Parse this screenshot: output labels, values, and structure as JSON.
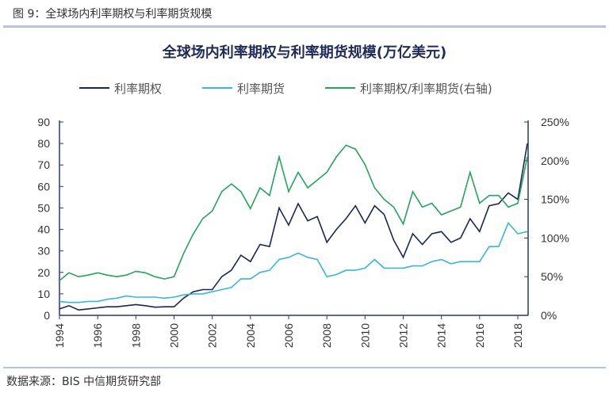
{
  "figure_caption": "图 9：全球场内利率期权与利率期货规模",
  "source": "数据来源：BIS 中信期货研究部",
  "chart_data": {
    "type": "line",
    "title": "全球场内利率期权与利率期货规模(万亿美元)",
    "legend_position": "top",
    "x": [
      1994,
      1994.5,
      1995,
      1995.5,
      1996,
      1996.5,
      1997,
      1997.5,
      1998,
      1998.5,
      1999,
      1999.5,
      2000,
      2000.5,
      2001,
      2001.5,
      2002,
      2002.5,
      2003,
      2003.5,
      2004,
      2004.5,
      2005,
      2005.5,
      2006,
      2006.5,
      2007,
      2007.5,
      2008,
      2008.5,
      2009,
      2009.5,
      2010,
      2010.5,
      2011,
      2011.5,
      2012,
      2012.5,
      2013,
      2013.5,
      2014,
      2014.5,
      2015,
      2015.5,
      2016,
      2016.5,
      2017,
      2017.5,
      2018,
      2018.5
    ],
    "x_ticks": [
      "1994",
      "1996",
      "1998",
      "2000",
      "2002",
      "2004",
      "2006",
      "2008",
      "2010",
      "2012",
      "2014",
      "2016",
      "2018"
    ],
    "y_left": {
      "range": [
        0,
        90
      ],
      "ticks": [
        "0",
        "10",
        "20",
        "30",
        "40",
        "50",
        "60",
        "70",
        "80",
        "90"
      ]
    },
    "y_right": {
      "range": [
        0,
        250
      ],
      "ticks": [
        "0%",
        "50%",
        "100%",
        "150%",
        "200%",
        "250%"
      ]
    },
    "grid": false,
    "series": [
      {
        "name": "利率期权",
        "axis": "left",
        "color": "#1b2654",
        "values": [
          3,
          4.5,
          2.5,
          3,
          3.5,
          4,
          4,
          4.5,
          5,
          4.5,
          3.8,
          4,
          4,
          8,
          11,
          12,
          12,
          18,
          21,
          28,
          25,
          33,
          32,
          50,
          42,
          52,
          44,
          46,
          34,
          40,
          45,
          51,
          43,
          51,
          47,
          35,
          27,
          38,
          33,
          38,
          39,
          34,
          36,
          45,
          39,
          51,
          52,
          57,
          54,
          80
        ]
      },
      {
        "name": "利率期货",
        "axis": "left",
        "color": "#37b6e0",
        "values": [
          6.5,
          6,
          6,
          6.5,
          6.5,
          7.5,
          8,
          9,
          8.5,
          8.5,
          8.5,
          8,
          8.5,
          9.5,
          10,
          10,
          11,
          12,
          13,
          17,
          17,
          20,
          21,
          26,
          27,
          29,
          27,
          26,
          18,
          19,
          21,
          21,
          22,
          26,
          22,
          22,
          22,
          23,
          23,
          25,
          26,
          24,
          25,
          25,
          25,
          32,
          32,
          43,
          38,
          39
        ]
      },
      {
        "name": "利率期权/利率期货(右轴)",
        "axis": "right",
        "color": "#22a65a",
        "values": [
          45,
          55,
          50,
          52,
          55,
          52,
          50,
          52,
          57,
          55,
          50,
          47,
          50,
          80,
          105,
          125,
          135,
          160,
          170,
          160,
          138,
          165,
          155,
          205,
          160,
          185,
          165,
          175,
          185,
          205,
          220,
          215,
          195,
          165,
          150,
          140,
          118,
          160,
          140,
          145,
          130,
          135,
          140,
          185,
          145,
          155,
          155,
          140,
          145,
          205
        ]
      }
    ]
  }
}
